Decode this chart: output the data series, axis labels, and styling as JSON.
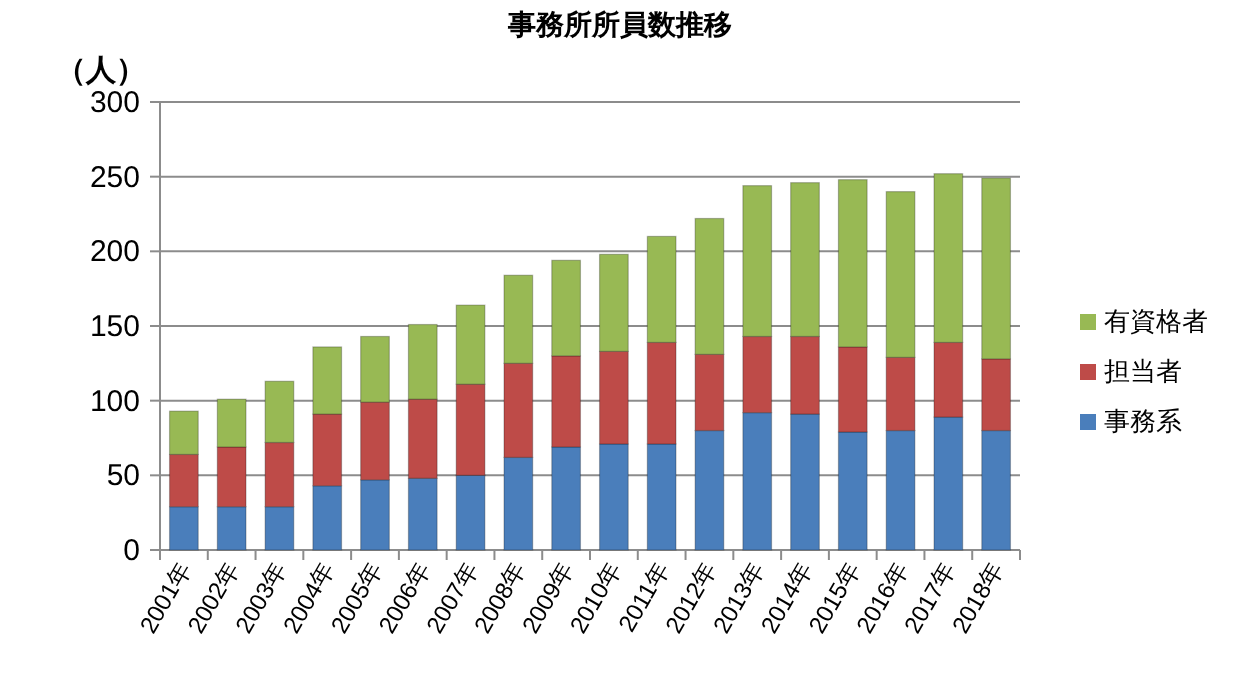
{
  "chart_data": {
    "type": "bar",
    "title": "事務所所員数推移",
    "ylabel": "（人）",
    "categories": [
      "2001年",
      "2002年",
      "2003年",
      "2004年",
      "2005年",
      "2006年",
      "2007年",
      "2008年",
      "2009年",
      "2010年",
      "2011年",
      "2012年",
      "2013年",
      "2014年",
      "2015年",
      "2016年",
      "2017年",
      "2018年"
    ],
    "series": [
      {
        "name": "事務系",
        "color": "#4a7ebb",
        "values": [
          29,
          29,
          29,
          43,
          47,
          48,
          50,
          62,
          69,
          71,
          71,
          80,
          92,
          91,
          79,
          80,
          89,
          80
        ]
      },
      {
        "name": "担当者",
        "color": "#be4b48",
        "values": [
          35,
          40,
          43,
          48,
          52,
          53,
          61,
          63,
          61,
          62,
          68,
          51,
          51,
          52,
          57,
          49,
          50,
          48
        ]
      },
      {
        "name": "有資格者",
        "color": "#98b954",
        "values": [
          29,
          32,
          41,
          45,
          44,
          50,
          53,
          59,
          64,
          65,
          71,
          91,
          101,
          103,
          112,
          111,
          113,
          121
        ]
      }
    ],
    "stacked": true,
    "ylim": [
      0,
      300
    ],
    "yticks": [
      0,
      50,
      100,
      150,
      200,
      250,
      300
    ],
    "grid": "y",
    "legend": "right"
  }
}
